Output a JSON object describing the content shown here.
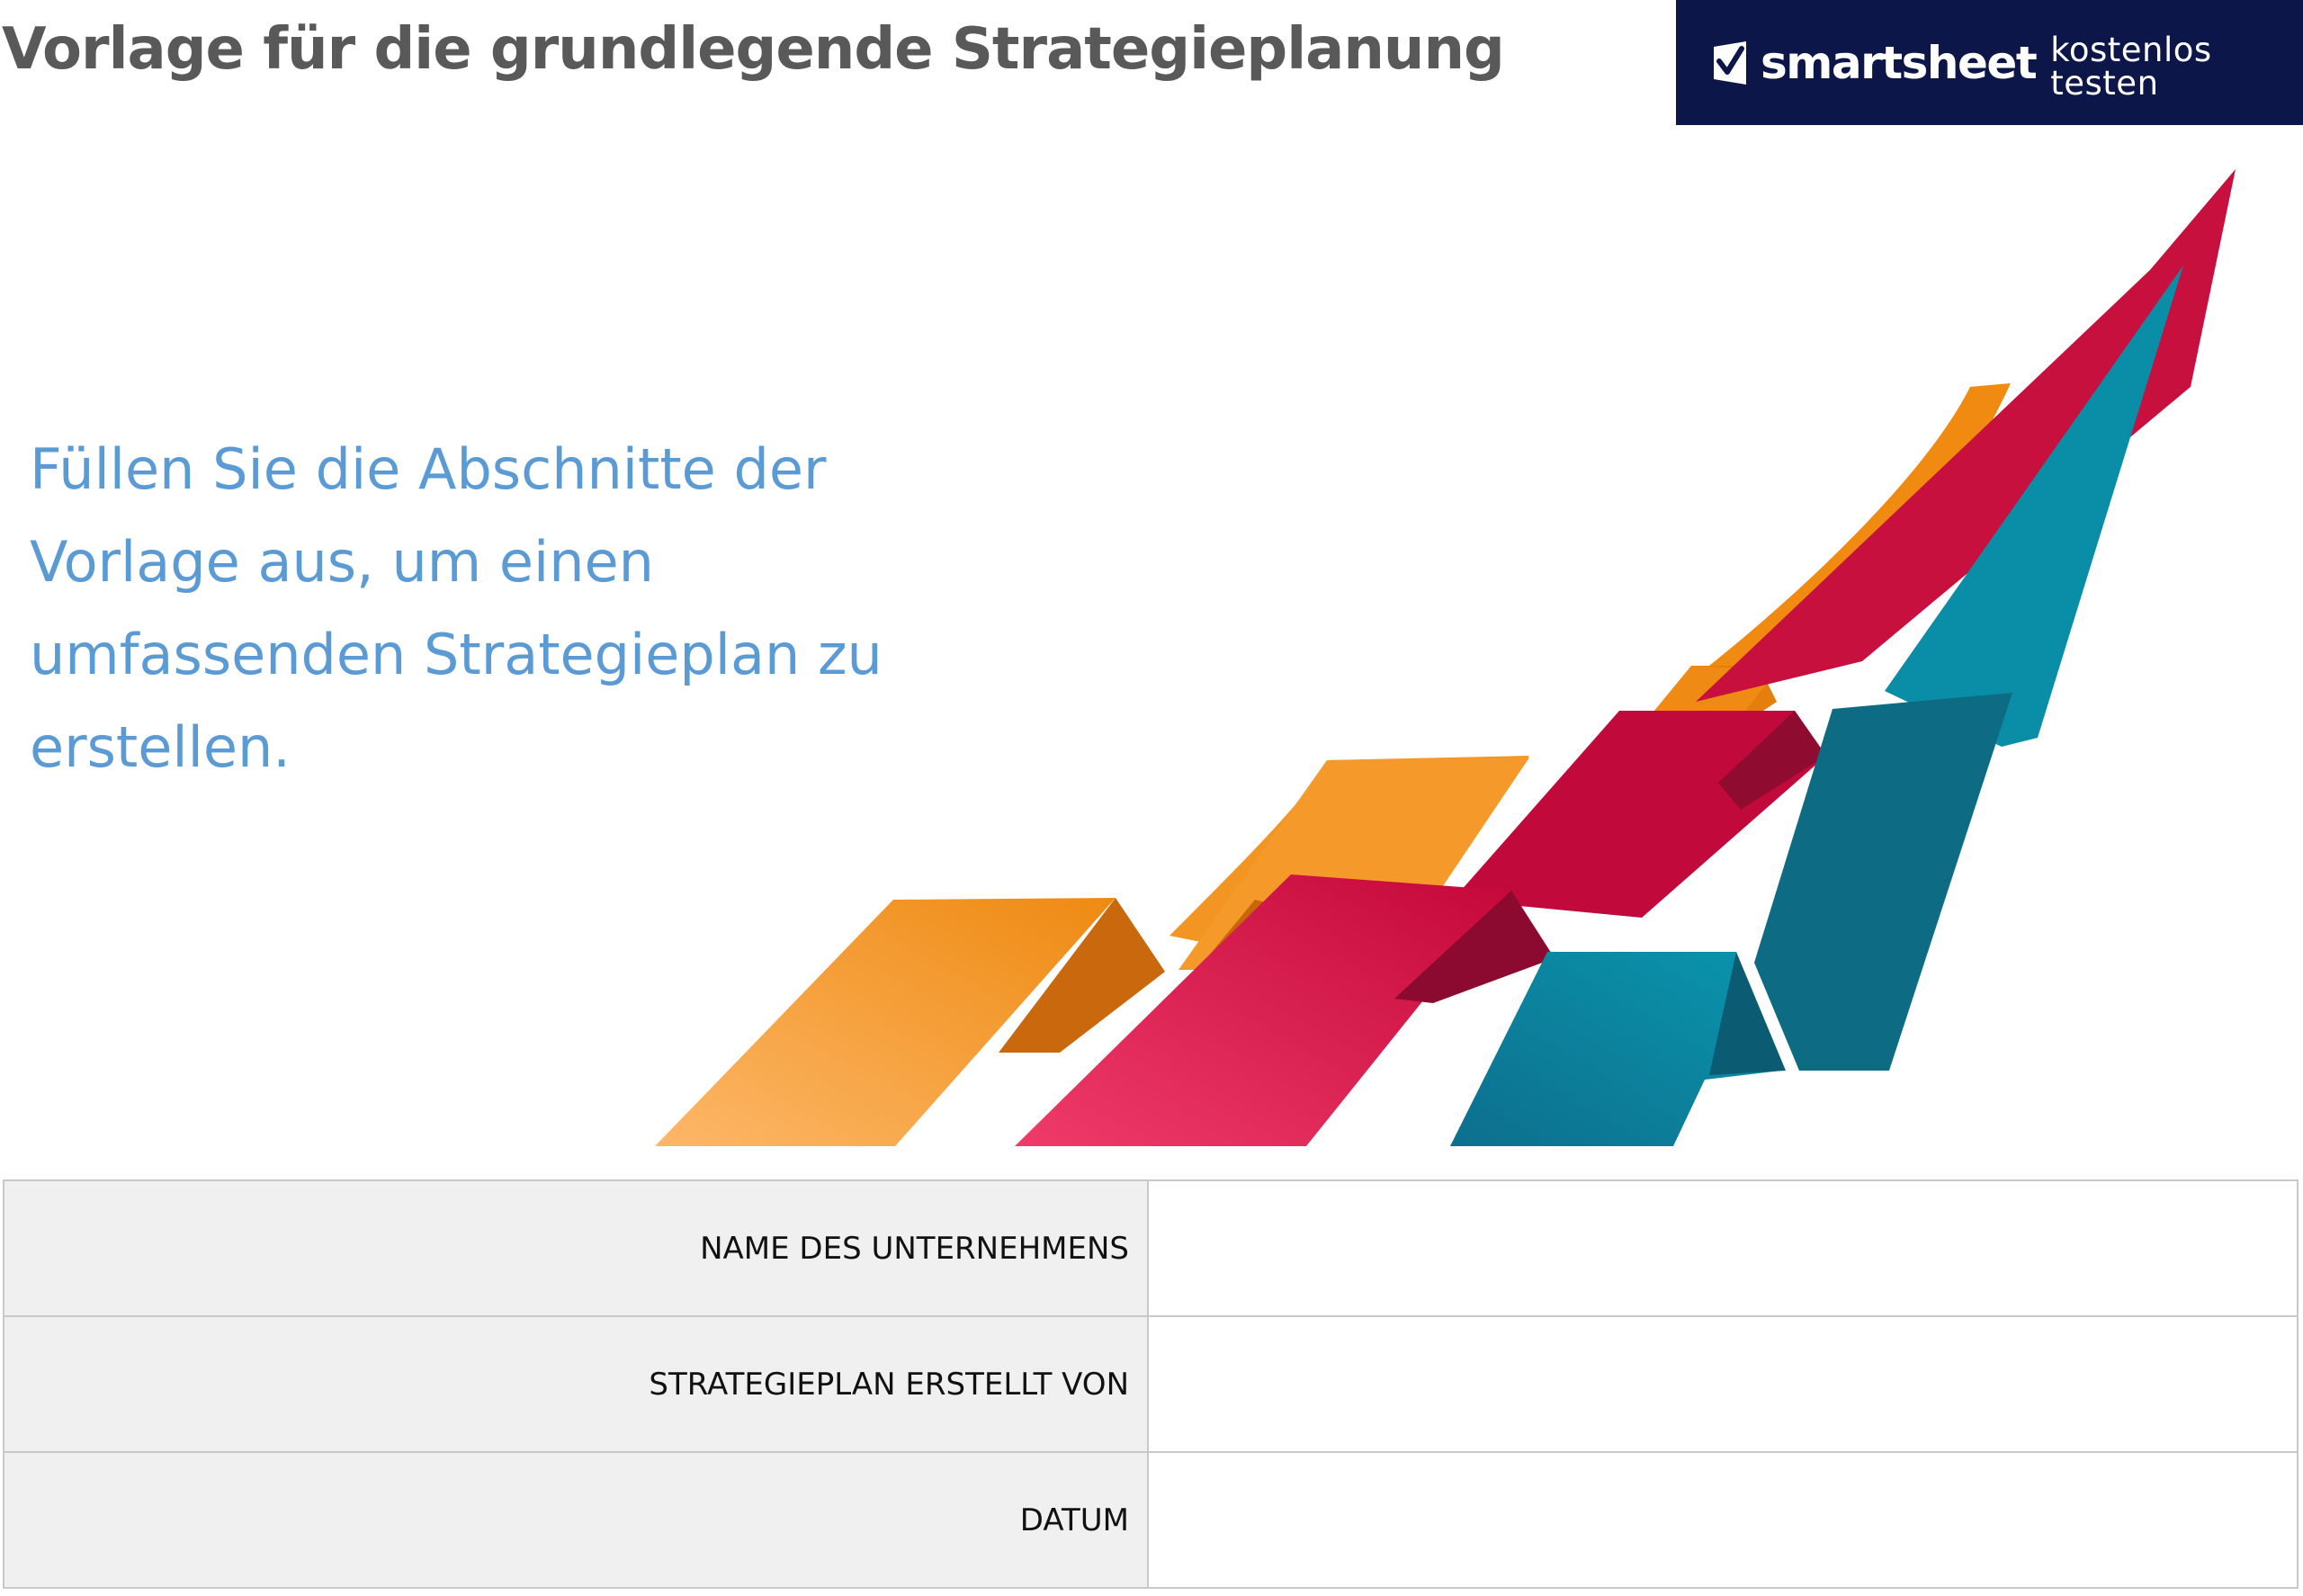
{
  "page": {
    "title": "Vorlage für die grundlegende Strategieplanung",
    "intro": "Füllen Sie die Abschnitte der Vorlage aus, um einen umfassenden Strategieplan zu erstellen."
  },
  "banner": {
    "brand": "smartsheet",
    "cta": "kostenlos testen",
    "icon": "smartsheet-check-icon",
    "background": "#0d1649"
  },
  "colors": {
    "title": "#595959",
    "intro": "#5b9bd5",
    "orange": "#f39a2c",
    "crimson": "#c8103e",
    "teal": "#0a7a96",
    "label_cell": "#f0f0f0"
  },
  "info_table": {
    "rows": [
      {
        "label": "NAME DES UNTERNEHMENS",
        "value": ""
      },
      {
        "label": "STRATEGIEPLAN ERSTELLT VON",
        "value": ""
      },
      {
        "label": "DATUM",
        "value": ""
      }
    ]
  }
}
